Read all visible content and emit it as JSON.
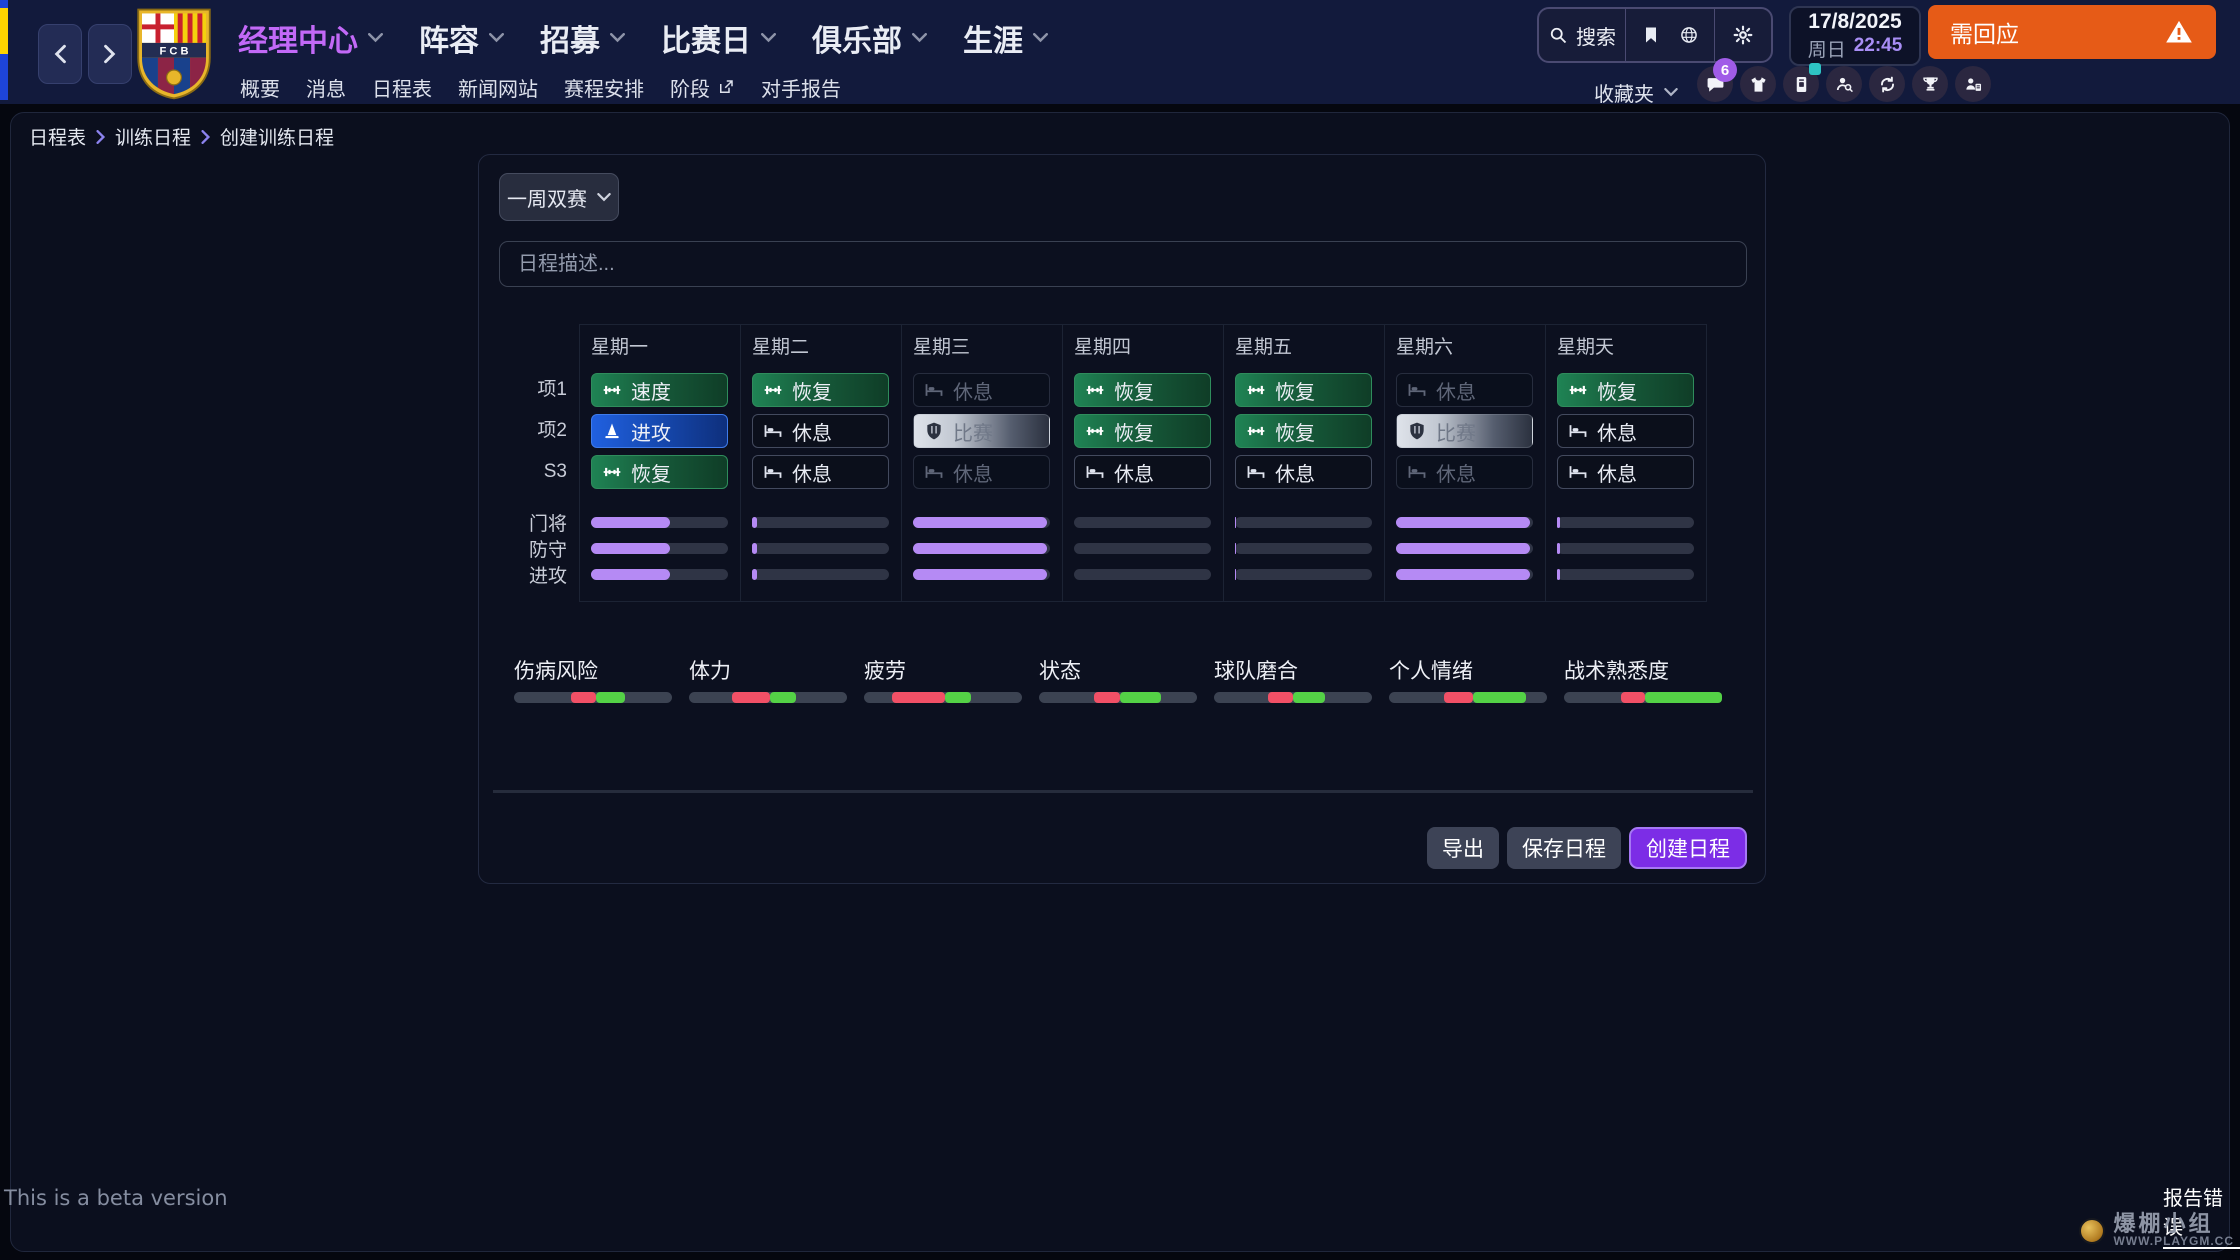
{
  "header": {
    "nav": [
      {
        "label": "经理中心",
        "active": true
      },
      {
        "label": "阵容",
        "active": false
      },
      {
        "label": "招募",
        "active": false
      },
      {
        "label": "比赛日",
        "active": false
      },
      {
        "label": "俱乐部",
        "active": false
      },
      {
        "label": "生涯",
        "active": false
      }
    ],
    "subnav": [
      {
        "label": "概要",
        "external": false
      },
      {
        "label": "消息",
        "external": false
      },
      {
        "label": "日程表",
        "external": false
      },
      {
        "label": "新闻网站",
        "external": false
      },
      {
        "label": "赛程安排",
        "external": false
      },
      {
        "label": "阶段",
        "external": true
      },
      {
        "label": "对手报告",
        "external": false
      }
    ],
    "search_label": "搜索",
    "clock": {
      "date": "17/8/2025",
      "day": "周日",
      "time": "22:45"
    },
    "alert_label": "需回应",
    "favorites_label": "收藏夹",
    "notification_count": "6"
  },
  "breadcrumb": [
    "日程表",
    "训练日程",
    "创建训练日程"
  ],
  "scheduler": {
    "preset_label": "一周双赛",
    "description_placeholder": "日程描述...",
    "days": [
      "星期一",
      "星期二",
      "星期三",
      "星期四",
      "星期五",
      "星期六",
      "星期天"
    ],
    "slot_rows": [
      {
        "label": "项1",
        "cells": [
          {
            "type": "training",
            "text": "速度"
          },
          {
            "type": "training",
            "text": "恢复"
          },
          {
            "type": "rest-dim",
            "text": "休息"
          },
          {
            "type": "training",
            "text": "恢复"
          },
          {
            "type": "training",
            "text": "恢复"
          },
          {
            "type": "rest-dim",
            "text": "休息"
          },
          {
            "type": "training",
            "text": "恢复"
          }
        ]
      },
      {
        "label": "项2",
        "cells": [
          {
            "type": "attack",
            "text": "进攻"
          },
          {
            "type": "rest",
            "text": "休息"
          },
          {
            "type": "match",
            "text": "比赛"
          },
          {
            "type": "training",
            "text": "恢复"
          },
          {
            "type": "training",
            "text": "恢复"
          },
          {
            "type": "match",
            "text": "比赛"
          },
          {
            "type": "rest",
            "text": "休息"
          }
        ]
      },
      {
        "label": "S3",
        "cells": [
          {
            "type": "training",
            "text": "恢复"
          },
          {
            "type": "rest",
            "text": "休息"
          },
          {
            "type": "rest-dim",
            "text": "休息"
          },
          {
            "type": "rest",
            "text": "休息"
          },
          {
            "type": "rest",
            "text": "休息"
          },
          {
            "type": "rest-dim",
            "text": "休息"
          },
          {
            "type": "rest",
            "text": "休息"
          }
        ]
      }
    ],
    "intensity_rows": [
      {
        "label": "门将",
        "values": [
          58,
          4,
          98,
          0,
          1,
          98,
          2
        ]
      },
      {
        "label": "防守",
        "values": [
          58,
          4,
          98,
          0,
          1,
          98,
          2
        ]
      },
      {
        "label": "进攻",
        "values": [
          58,
          4,
          98,
          0,
          1,
          98,
          2
        ]
      }
    ],
    "status_bars": [
      {
        "label": "伤病风险",
        "red": [
          36,
          52
        ],
        "green": [
          52,
          70
        ]
      },
      {
        "label": "体力",
        "red": [
          27,
          51
        ],
        "green": [
          51,
          68
        ]
      },
      {
        "label": "疲劳",
        "red": [
          18,
          51
        ],
        "green": [
          51,
          68
        ]
      },
      {
        "label": "状态",
        "red": [
          35,
          51
        ],
        "green": [
          51,
          77
        ]
      },
      {
        "label": "球队磨合",
        "red": [
          34,
          50
        ],
        "green": [
          50,
          70
        ]
      },
      {
        "label": "个人情绪",
        "red": [
          35,
          53
        ],
        "green": [
          53,
          87
        ]
      },
      {
        "label": "战术熟悉度",
        "red": [
          36,
          51
        ],
        "green": [
          51,
          100
        ]
      }
    ],
    "actions": {
      "export": "导出",
      "save": "保存日程",
      "create": "创建日程"
    }
  },
  "footer": {
    "beta_note": "This is a beta version",
    "report_error": "报告错误",
    "watermark_title": "爆棚小组",
    "watermark_url": "WWW.PLAYGM.CC"
  },
  "colors": {
    "accent_purple": "#7c2de6",
    "bar_purple": "#b58af4",
    "alert_orange": "#e65b17",
    "status_red": "#f25066",
    "status_green": "#54d246",
    "nav_active": "#c269f7"
  }
}
